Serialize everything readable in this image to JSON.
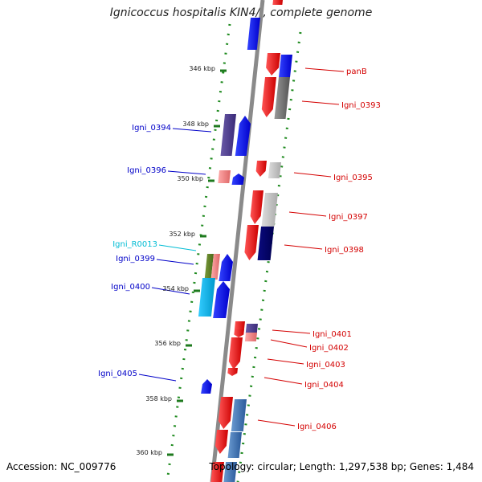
{
  "title": "Ignicoccus hospitalis KIN4/I, complete genome",
  "footer": {
    "accession": "Accession: NC_009776",
    "summary": "Topology: circular; Length: 1,297,538 bp; Genes: 1,484"
  },
  "colors": {
    "backbone": "#8a8a8a",
    "tick_dots": "#1e8a1e",
    "forward_label": "#d40000",
    "reverse_label": "#0000c8",
    "rna_label": "#00bcd4"
  },
  "scale_labels": [
    "346 kbp",
    "348 kbp",
    "350 kbp",
    "352 kbp",
    "354 kbp",
    "356 kbp",
    "358 kbp",
    "360 kbp"
  ],
  "forward_genes": [
    "panB",
    "Igni_0393",
    "Igni_0395",
    "Igni_0397",
    "Igni_0398",
    "Igni_0401",
    "Igni_0402",
    "Igni_0403",
    "Igni_0404",
    "Igni_0406"
  ],
  "reverse_genes": [
    "Igni_0394",
    "Igni_0396",
    "Igni_R0013",
    "Igni_0399",
    "Igni_0400",
    "Igni_0405"
  ]
}
